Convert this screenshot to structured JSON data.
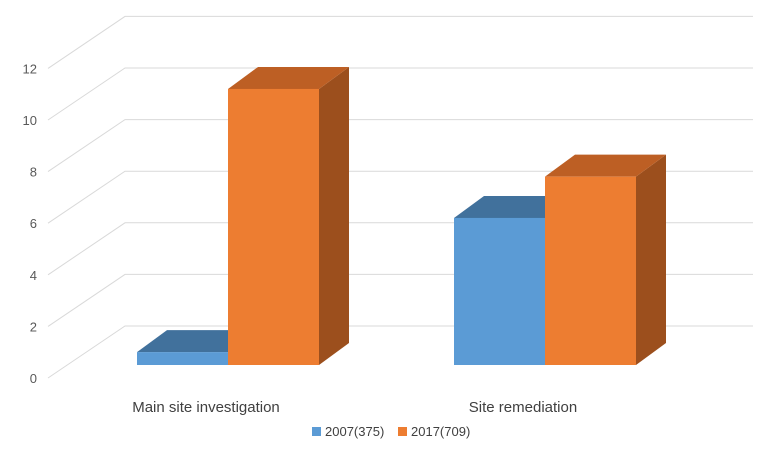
{
  "chart_data": {
    "type": "bar",
    "three_d": true,
    "categories": [
      "Main site investigation",
      "Site remediation"
    ],
    "series": [
      {
        "name": "2007(375)",
        "values": [
          0.5,
          5.7
        ],
        "color": "#5b9bd5",
        "top_color": "#41719c",
        "side_color": "#3f6f99"
      },
      {
        "name": "2017(709)",
        "values": [
          10.7,
          7.3
        ],
        "color": "#ed7d31",
        "top_color": "#bd5f24",
        "side_color": "#9c4f1d"
      }
    ],
    "yticks": [
      0,
      2,
      4,
      6,
      8,
      10,
      12
    ],
    "ylim": [
      0,
      12
    ],
    "grid": true,
    "legend_position": "bottom"
  }
}
